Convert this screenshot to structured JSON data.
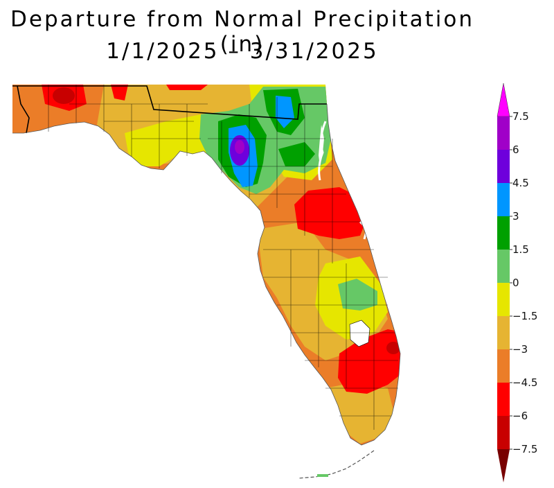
{
  "title_line1": "Departure from Normal Precipitation (in)",
  "title_line2": "1/1/2025 – 3/31/2025",
  "legend": {
    "labels": [
      "7.5",
      "6",
      "4.5",
      "3",
      "1.5",
      "0",
      "−1.5",
      "−3",
      "−4.5",
      "−6",
      "−7.5"
    ],
    "bins": [
      {
        "from": 7.5,
        "to": null,
        "color": "#ff00ff",
        "arrow": true
      },
      {
        "from": 6,
        "to": 7.5,
        "color": "#a000c8"
      },
      {
        "from": 4.5,
        "to": 6,
        "color": "#6e00dc"
      },
      {
        "from": 3,
        "to": 4.5,
        "color": "#0096ff"
      },
      {
        "from": 1.5,
        "to": 3,
        "color": "#00a000"
      },
      {
        "from": 0,
        "to": 1.5,
        "color": "#66c866"
      },
      {
        "from": -1.5,
        "to": 0,
        "color": "#e6e600"
      },
      {
        "from": -3,
        "to": -1.5,
        "color": "#e6b432"
      },
      {
        "from": -4.5,
        "to": -3,
        "color": "#eb7d28"
      },
      {
        "from": -6,
        "to": -4.5,
        "color": "#ff0000"
      },
      {
        "from": -7.5,
        "to": -6,
        "color": "#c80000"
      },
      {
        "from": null,
        "to": -7.5,
        "color": "#780000",
        "arrow": true
      }
    ]
  }
}
